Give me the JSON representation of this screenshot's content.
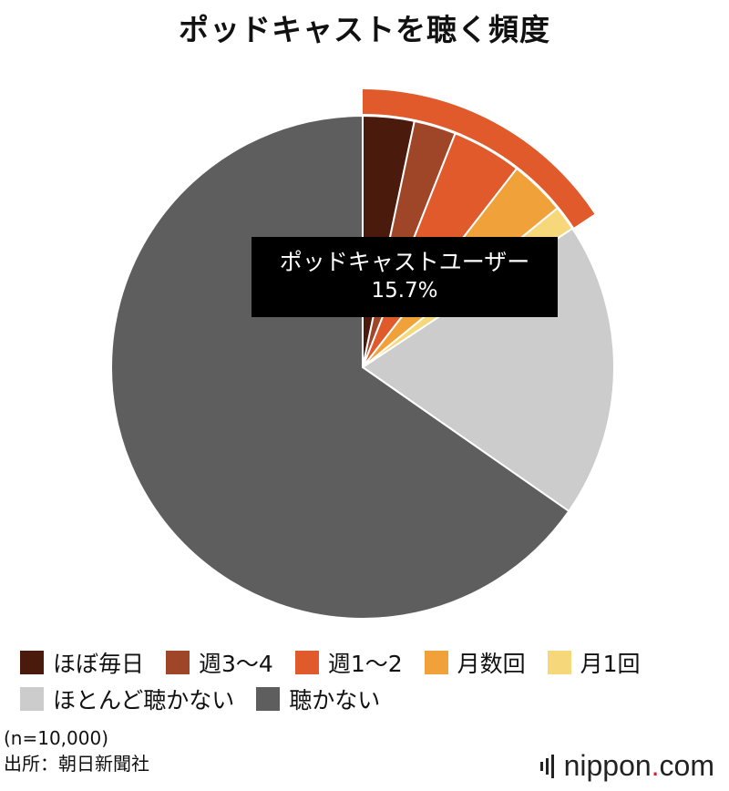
{
  "chart_data": {
    "type": "pie",
    "title": "ポッドキャストを聴く頻度",
    "categories": [
      "ほぼ毎日",
      "週3〜4",
      "週1〜2",
      "月数回",
      "月1回",
      "ほとんど聴かない",
      "聴かない"
    ],
    "values": [
      3.3,
      2.7,
      4.5,
      3.6,
      1.6,
      19.0,
      65.3
    ],
    "colors": [
      "#4a1a0d",
      "#a04628",
      "#e05a2b",
      "#f0a13a",
      "#f6d77a",
      "#cccccc",
      "#5e5e5e"
    ],
    "highlight": {
      "label": "ポッドキャストユーザー",
      "value": "15.7%",
      "color": "#e05a2b"
    },
    "legend_position": "bottom"
  },
  "notes": {
    "sample": "(n=10,000)",
    "source": "出所：朝日新聞社"
  },
  "brand": {
    "name": "nippon",
    "dot": ".",
    "suffix": "com"
  }
}
